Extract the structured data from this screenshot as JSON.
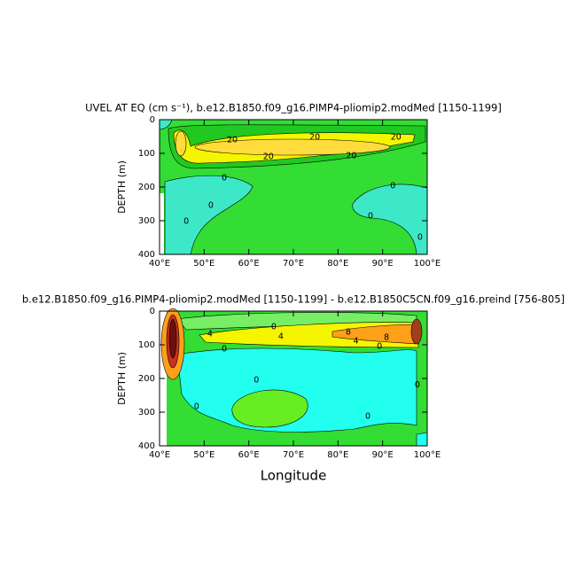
{
  "chart_data": [
    {
      "type": "contour",
      "title": "UVEL AT EQ (cm s⁻¹), b.e12.B1850.f09_g16.PIMP4-pliomip2.modMed [1150-1199]",
      "ylabel": "DEPTH (m)",
      "xlim": [
        40,
        100
      ],
      "ylim": [
        400,
        0
      ],
      "xticks": [
        {
          "value": 40,
          "label": "40°E"
        },
        {
          "value": 50,
          "label": "50°E"
        },
        {
          "value": 60,
          "label": "60°E"
        },
        {
          "value": 70,
          "label": "70°E"
        },
        {
          "value": 80,
          "label": "80°E"
        },
        {
          "value": 90,
          "label": "90°E"
        },
        {
          "value": 100,
          "label": "100°E"
        }
      ],
      "yticks": [
        0,
        100,
        200,
        300,
        400
      ],
      "contour_labels": {
        "x": [
          56.3,
          74.8,
          93,
          64.4,
          83,
          54.5,
          51.5,
          46,
          92.3,
          87.3,
          98.4
        ],
        "y": [
          60,
          53,
          53,
          110,
          108,
          174,
          255,
          303,
          197,
          287,
          350
        ],
        "values": [
          20,
          20,
          20,
          20,
          20,
          0,
          0,
          0,
          0,
          0,
          0
        ]
      }
    },
    {
      "type": "contour",
      "title": "b.e12.B1850.f09_g16.PIMP4-pliomip2.modMed [1150-1199] - b.e12.B1850C5CN.f09_g16.preind [756-805]",
      "xlabel": "Longitude",
      "ylabel": "DEPTH (m)",
      "xlim": [
        40,
        100
      ],
      "ylim": [
        400,
        0
      ],
      "xticks": [
        {
          "value": 40,
          "label": "40°E"
        },
        {
          "value": 50,
          "label": "50°E"
        },
        {
          "value": 60,
          "label": "60°E"
        },
        {
          "value": 70,
          "label": "70°E"
        },
        {
          "value": 80,
          "label": "80°E"
        },
        {
          "value": 90,
          "label": "90°E"
        },
        {
          "value": 100,
          "label": "100°E"
        }
      ],
      "yticks": [
        0,
        100,
        200,
        300,
        400
      ],
      "contour_labels": {
        "x": [
          51.3,
          65.6,
          67.2,
          82.3,
          84,
          90.9,
          54.5,
          89.3,
          61.7,
          48.3,
          86.7,
          97.8
        ],
        "y": [
          68,
          47,
          76,
          63,
          89,
          79,
          113,
          105,
          205,
          284,
          313,
          220
        ],
        "values": [
          4,
          0,
          4,
          8,
          4,
          8,
          0,
          0,
          0,
          0,
          0,
          0
        ]
      }
    }
  ]
}
